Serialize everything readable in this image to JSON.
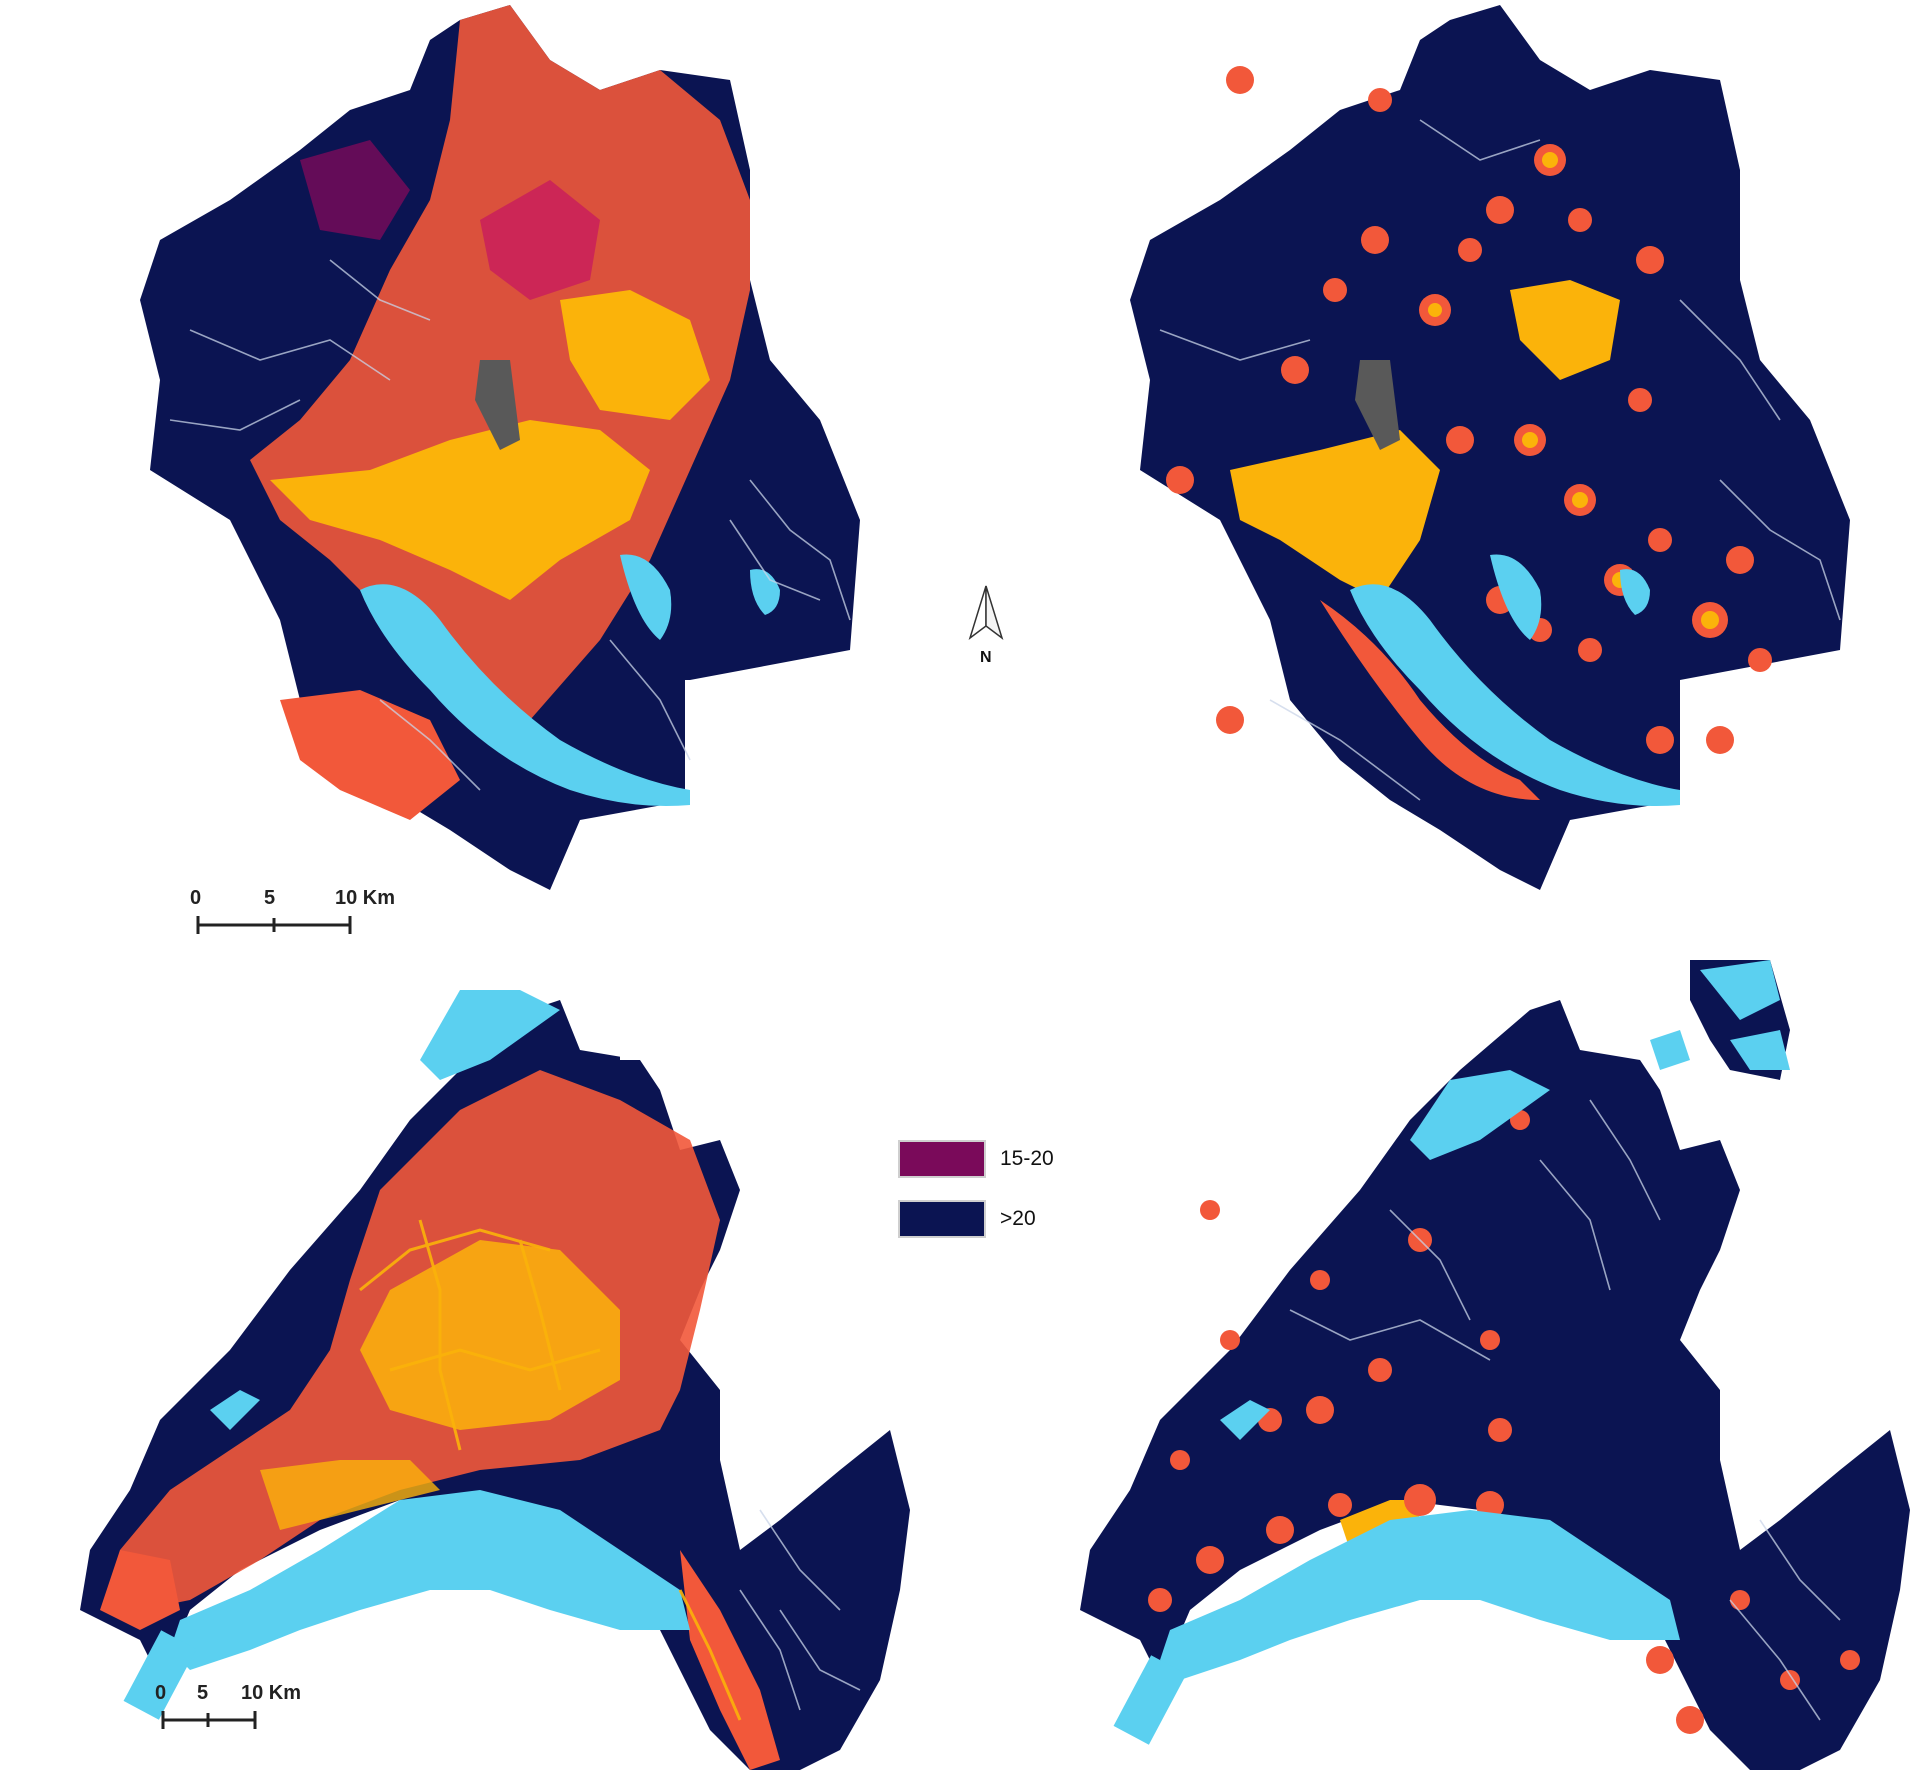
{
  "maps": {
    "zh_left": {
      "name": "zurich-all-access-map"
    },
    "zh_right": {
      "name": "zurich-limited-access-map"
    },
    "vd_left": {
      "name": "vaud-all-access-map"
    },
    "vd_right": {
      "name": "vaud-limited-access-map"
    }
  },
  "scale_bar_top": {
    "t0": "0",
    "t5": "5",
    "t10": "10 Km"
  },
  "scale_bar_bottom": {
    "t0": "0",
    "t5": "5",
    "t10": "10 Km"
  },
  "north_arrow": {
    "label": "N"
  },
  "legend": {
    "items": [
      {
        "label": "15-20",
        "color": "#7a0a5a"
      },
      {
        "label": ">20",
        "color": "#0b1452"
      }
    ]
  },
  "colors": {
    "base": "#0b1452",
    "lake": "#5bd0f0",
    "high": "#fbb30a",
    "mid": "#f2583a",
    "low": "#c81c5c",
    "road": "#c9d4e8"
  }
}
